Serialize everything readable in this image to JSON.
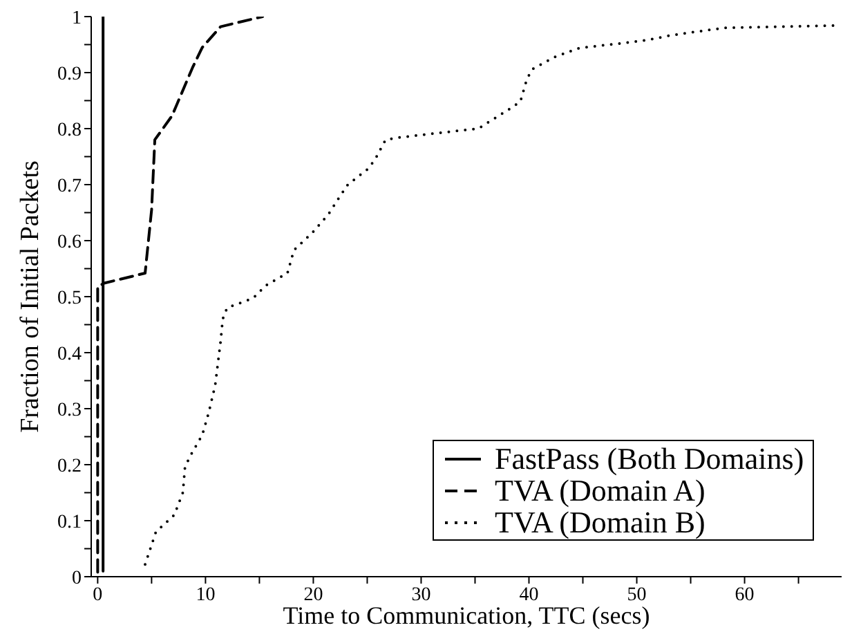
{
  "chart_data": {
    "type": "line",
    "xlabel": "Time to Communication, TTC (secs)",
    "ylabel": "Fraction of Initial Packets",
    "xlim": [
      -0.6,
      69
    ],
    "ylim": [
      0,
      1
    ],
    "xticks": [
      0,
      {
        "value": 5,
        "label": null
      },
      10,
      {
        "value": 15,
        "label": null
      },
      20,
      {
        "value": 25,
        "label": null
      },
      30,
      {
        "value": 35,
        "label": null
      },
      40,
      {
        "value": 45,
        "label": null
      },
      50,
      {
        "value": 55,
        "label": null
      },
      60,
      {
        "value": 65,
        "label": null
      }
    ],
    "yticks": [
      0,
      {
        "value": 0.05,
        "label": null
      },
      0.1,
      {
        "value": 0.15,
        "label": null
      },
      0.2,
      {
        "value": 0.25,
        "label": null
      },
      0.3,
      {
        "value": 0.35,
        "label": null
      },
      0.4,
      {
        "value": 0.45,
        "label": null
      },
      0.5,
      {
        "value": 0.55,
        "label": null
      },
      0.6,
      {
        "value": 0.65,
        "label": null
      },
      0.7,
      {
        "value": 0.75,
        "label": null
      },
      0.8,
      {
        "value": 0.85,
        "label": null
      },
      0.9,
      {
        "value": 0.95,
        "label": null
      },
      1
    ],
    "grid": false,
    "legend": "bottom right",
    "marker": "none",
    "series": [
      {
        "name": "FastPass (Both Domains)",
        "color": "#000000",
        "line_style": "solid",
        "x": [
          0.5,
          0.5
        ],
        "values": [
          0.01,
          1
        ]
      },
      {
        "name": "TVA (Domain A)",
        "color": "#000000",
        "line_style": "dashed",
        "x": [
          0,
          0,
          0.6,
          4.4,
          5.0,
          5.3,
          6.9,
          8.8,
          9.7,
          11.4,
          15.3
        ],
        "values": [
          0.008,
          0.518,
          0.524,
          0.542,
          0.655,
          0.78,
          0.823,
          0.909,
          0.945,
          0.982,
          1
        ]
      },
      {
        "name": "TVA (Domain B)",
        "color": "#000000",
        "line_style": "dotted",
        "x": [
          4.4,
          4.8,
          5.4,
          7.1,
          7.9,
          8.1,
          8.6,
          9.7,
          10.3,
          10.9,
          11.4,
          11.6,
          12,
          14.4,
          15.6,
          17.6,
          18.2,
          19.9,
          21.4,
          22.5,
          23.2,
          25,
          25.7,
          26.7,
          27.9,
          31.5,
          35.3,
          36.2,
          38.2,
          39.2,
          39.8,
          40.3,
          42.4,
          44.7,
          48.4,
          50.9,
          53.3,
          55.9,
          58.2,
          68.2
        ],
        "values": [
          0.022,
          0.045,
          0.08,
          0.11,
          0.15,
          0.196,
          0.216,
          0.253,
          0.293,
          0.342,
          0.42,
          0.46,
          0.48,
          0.497,
          0.52,
          0.542,
          0.583,
          0.614,
          0.647,
          0.68,
          0.7,
          0.727,
          0.744,
          0.78,
          0.784,
          0.792,
          0.8,
          0.811,
          0.835,
          0.848,
          0.888,
          0.906,
          0.928,
          0.944,
          0.952,
          0.958,
          0.967,
          0.974,
          0.98,
          0.984
        ]
      }
    ]
  }
}
